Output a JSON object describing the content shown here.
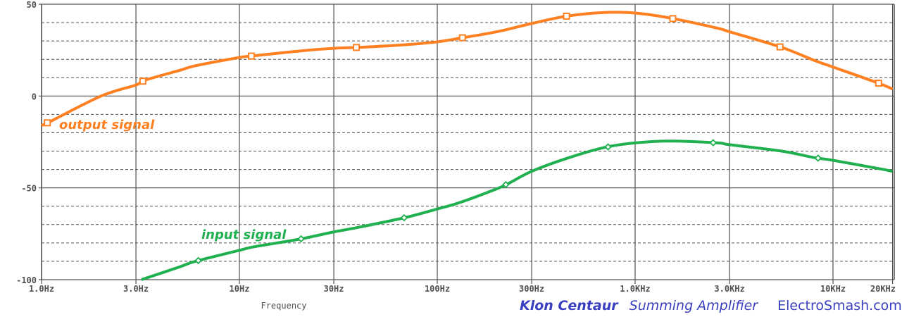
{
  "chart_data": {
    "type": "line",
    "title": "Klon Centaur Summing Amplifier",
    "xlabel": "Frequency",
    "ylabel": "",
    "xscale": "log",
    "xlim": [
      1,
      20000
    ],
    "ylim": [
      -100,
      50
    ],
    "grid": true,
    "y_ticks": [
      50,
      0,
      -50,
      -100
    ],
    "y_tick_labels": [
      "50",
      "0",
      "-50",
      "-100"
    ],
    "x_ticks": [
      1,
      3,
      10,
      30,
      100,
      300,
      1000,
      3000,
      10000,
      20000
    ],
    "x_tick_labels": [
      "1.0Hz",
      "3.0Hz",
      "10Hz",
      "30Hz",
      "100Hz",
      "300Hz",
      "1.0KHz",
      "3.0KHz",
      "10KHz",
      "20KHz"
    ],
    "series": [
      {
        "name": "output signal",
        "color": "#ff8020",
        "marker": "square",
        "x": [
          1,
          1.1,
          2,
          3,
          3.3,
          5,
          6,
          10,
          12,
          20,
          30,
          40,
          70,
          100,
          130,
          200,
          300,
          450,
          700,
          1000,
          1500,
          2600,
          3000,
          5500,
          8000,
          10000,
          17000,
          20000
        ],
        "values": [
          -16,
          -14,
          0,
          6,
          8.5,
          14,
          16.5,
          21,
          22,
          24.5,
          26,
          26.5,
          28,
          29.5,
          31.5,
          35,
          39.5,
          43.5,
          45.5,
          45.2,
          42.5,
          37,
          35,
          26.5,
          19.5,
          15.8,
          7,
          3.8
        ],
        "marker_x": [
          1.07,
          3.25,
          11.5,
          39,
          134,
          450,
          1550,
          5400,
          17000
        ]
      },
      {
        "name": "input signal",
        "color": "#20b050",
        "marker": "diamond",
        "x": [
          3.2,
          5,
          6,
          10,
          12,
          20,
          30,
          40,
          70,
          100,
          130,
          200,
          230,
          300,
          450,
          700,
          1000,
          1500,
          2600,
          3000,
          5500,
          8000,
          10000,
          17000,
          20000
        ],
        "values": [
          -100,
          -93,
          -90,
          -84,
          -82,
          -78,
          -74,
          -71.5,
          -66,
          -61.5,
          -58,
          -50.5,
          -47.5,
          -41,
          -34,
          -28,
          -25.5,
          -24.5,
          -25.5,
          -26.5,
          -30,
          -33.5,
          -35,
          -39.5,
          -41
        ],
        "marker_x": [
          6.2,
          20.5,
          68,
          222,
          730,
          2480,
          8400
        ]
      }
    ],
    "annotations": [
      {
        "text": "output signal",
        "color": "#ff8020"
      },
      {
        "text": "input signal",
        "color": "#20b050"
      }
    ]
  },
  "footer": {
    "product": "Klon Centaur",
    "subtitle": "Summing Amplifier",
    "site": "ElectroSmash.com"
  }
}
